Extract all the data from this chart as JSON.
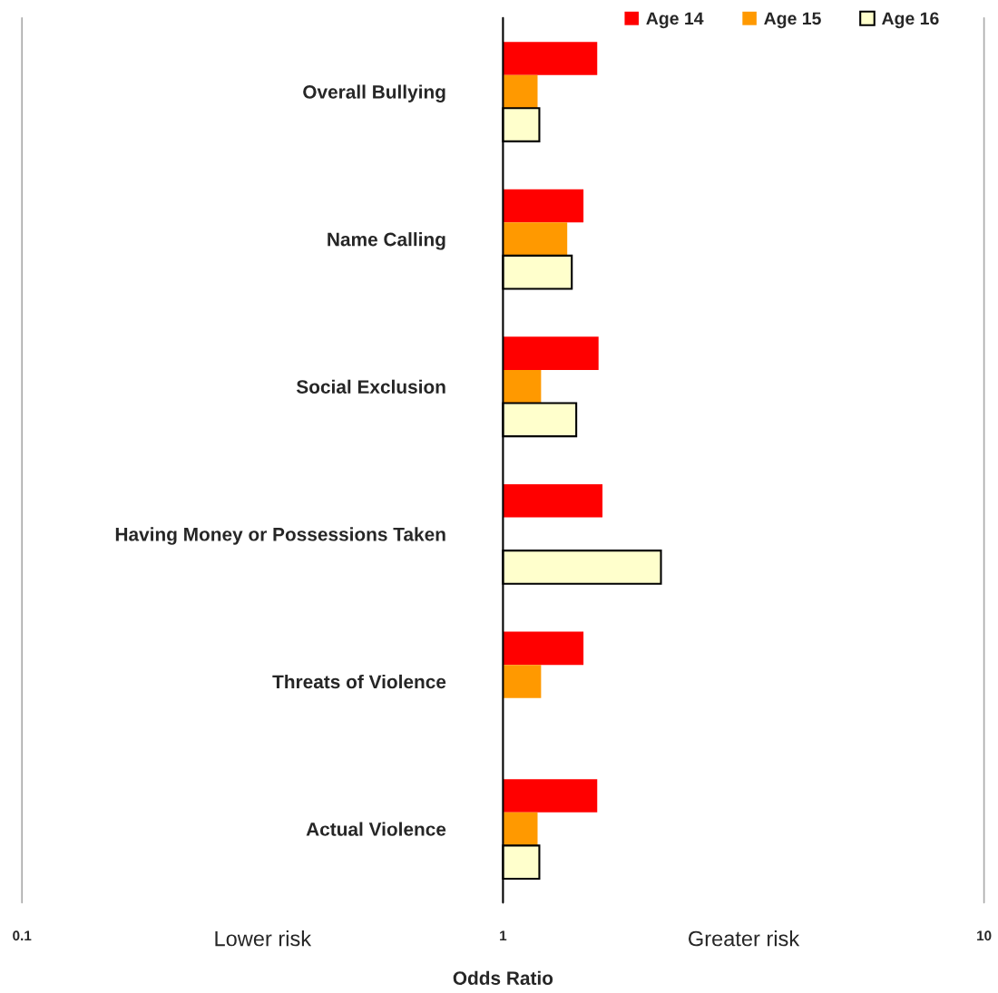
{
  "chart_data": {
    "type": "bar",
    "orientation": "horizontal",
    "xlabel": "Odds Ratio",
    "categories": [
      "Overall Bullying",
      "Name Calling",
      "Social Exclusion",
      "Having Money or Possessions Taken",
      "Threats of Violence",
      "Actual Violence"
    ],
    "series": [
      {
        "name": "Age 14",
        "color": "#ff0000",
        "values": [
          0.57,
          0.47,
          0.58,
          0.61,
          0.47,
          0.57
        ],
        "base": [
          1,
          1,
          1,
          1,
          1,
          1
        ]
      },
      {
        "name": "Age 15",
        "color": "#ff9900",
        "values": [
          0.18,
          0.36,
          0.2,
          null,
          0.2,
          0.18
        ],
        "base": [
          1,
          1,
          1,
          null,
          1,
          1
        ]
      },
      {
        "name": "Age 16",
        "color": "#ffffcc",
        "values": [
          0.19,
          0.39,
          0.42,
          1.13,
          null,
          0.19
        ],
        "base": [
          1,
          1,
          1,
          1,
          null,
          1
        ]
      }
    ],
    "ref_lines": [
      {
        "axis": "x",
        "value": 1,
        "color": "#000000"
      },
      {
        "axis": "x",
        "value": 0.1,
        "color": "#aaaaaa"
      },
      {
        "axis": "x",
        "value": 10,
        "color": "#aaaaaa"
      }
    ],
    "log": "x",
    "xlim": [
      0.1,
      10
    ],
    "xticks": [
      0.1,
      1,
      10
    ],
    "legend": "top right",
    "annotations": [
      "Lower risk",
      "Greater risk"
    ]
  }
}
